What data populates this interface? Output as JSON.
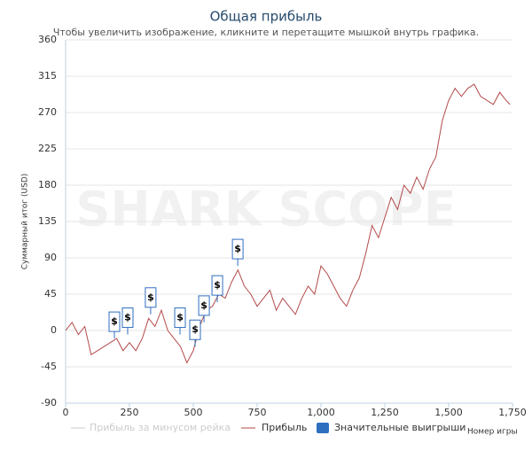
{
  "chart_data": {
    "type": "line",
    "title": "Общая прибыль",
    "subtitle": "Чтобы увеличить изображение, кликните и перетащите мышкой внутрь графика.",
    "watermark": "SHARK SCOPE",
    "x_label": "Номер игры",
    "y_label": "Суммарный итог (USD)",
    "x": [
      0,
      25,
      50,
      75,
      100,
      125,
      150,
      175,
      200,
      225,
      250,
      275,
      300,
      325,
      350,
      375,
      400,
      425,
      450,
      475,
      500,
      525,
      550,
      575,
      600,
      625,
      650,
      675,
      700,
      725,
      750,
      775,
      800,
      825,
      850,
      875,
      900,
      925,
      950,
      975,
      1000,
      1025,
      1050,
      1075,
      1100,
      1125,
      1150,
      1175,
      1200,
      1225,
      1250,
      1275,
      1300,
      1325,
      1350,
      1375,
      1400,
      1425,
      1450,
      1475,
      1500,
      1525,
      1550,
      1575,
      1600,
      1625,
      1650,
      1675,
      1700,
      1725,
      1740
    ],
    "series": [
      {
        "name": "Прибыль",
        "color": "#b34a4a",
        "values": [
          0,
          10,
          -5,
          5,
          -30,
          -25,
          -20,
          -15,
          -10,
          -25,
          -15,
          -25,
          -10,
          15,
          5,
          25,
          0,
          -10,
          -20,
          -40,
          -25,
          5,
          25,
          30,
          45,
          40,
          60,
          75,
          55,
          45,
          30,
          40,
          50,
          25,
          40,
          30,
          20,
          40,
          55,
          45,
          80,
          70,
          55,
          40,
          30,
          50,
          65,
          95,
          130,
          115,
          140,
          165,
          150,
          180,
          170,
          190,
          175,
          200,
          215,
          260,
          285,
          300,
          290,
          300,
          305,
          290,
          285,
          280,
          295,
          285,
          280
        ]
      }
    ],
    "hidden_series": {
      "name": "Прибыль за минусом рейка",
      "color": "#cccccc"
    },
    "flags": {
      "name": "Значительные выигрыши",
      "color": "#2f6fc0",
      "label": "$",
      "x": [
        191,
        243,
        333,
        448,
        507,
        542,
        594,
        674
      ],
      "values": [
        -10,
        -5,
        20,
        -5,
        -20,
        10,
        35,
        80
      ]
    },
    "xlim": [
      0,
      1750
    ],
    "xticks": [
      0,
      250,
      500,
      750,
      {
        "value": 1000,
        "label": "1,000"
      },
      {
        "value": 1250,
        "label": "1,250"
      },
      {
        "value": 1500,
        "label": "1,500"
      },
      {
        "value": 1750,
        "label": "1,750"
      }
    ],
    "ylim": [
      -90,
      360
    ],
    "yticks": [
      -90,
      -45,
      0,
      45,
      90,
      135,
      180,
      225,
      270,
      315,
      360
    ],
    "grid": true
  }
}
